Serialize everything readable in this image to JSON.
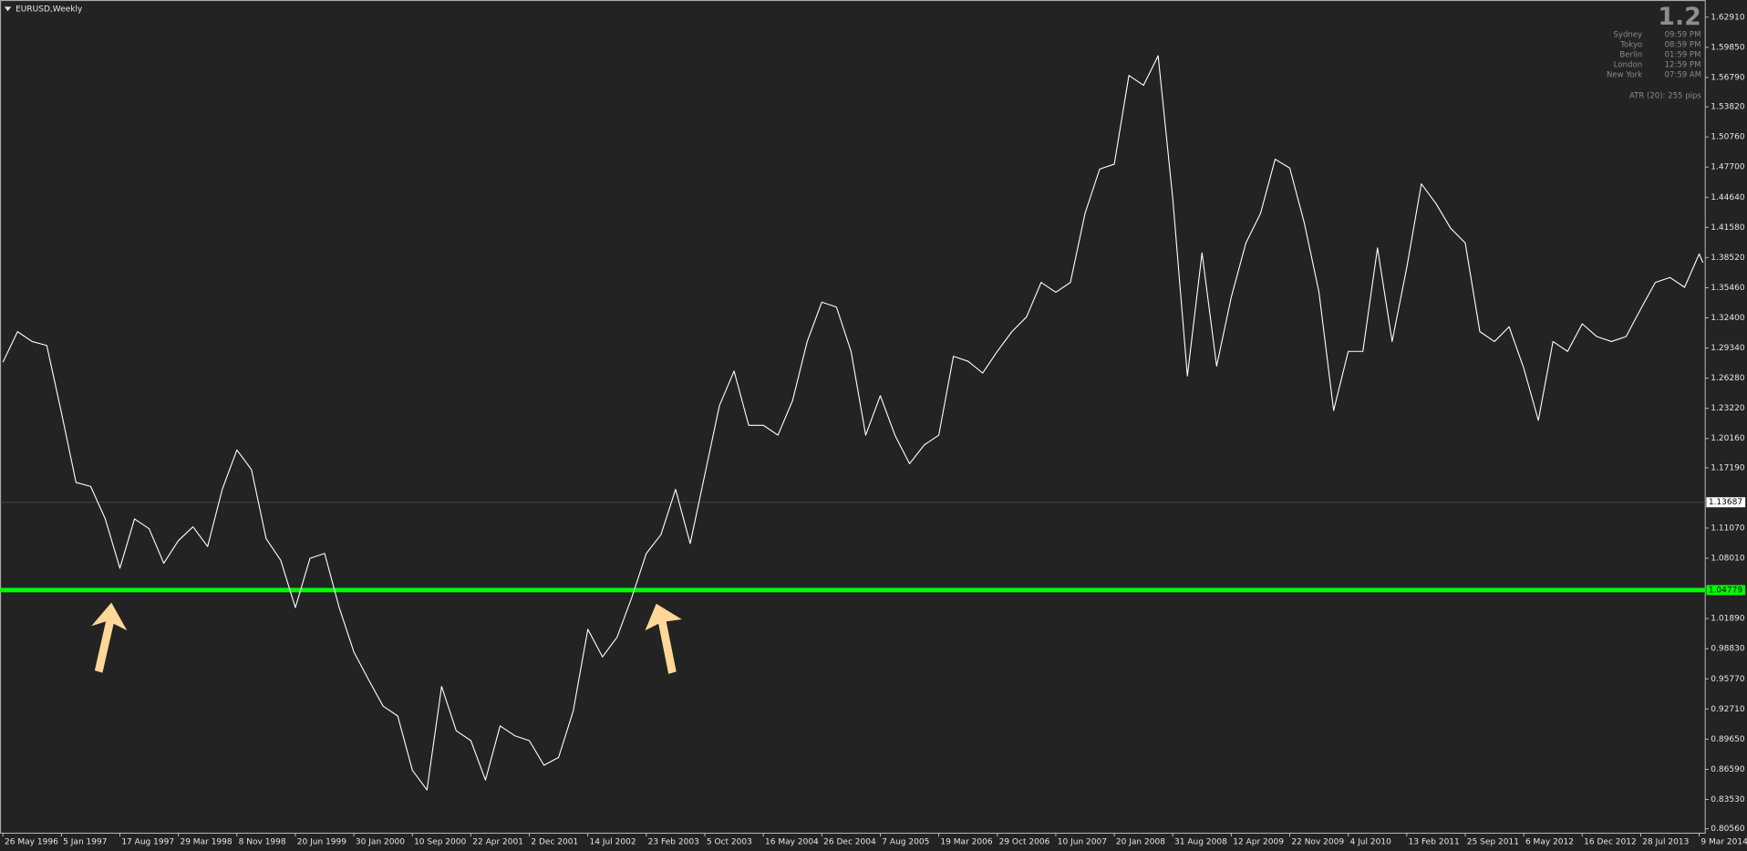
{
  "chart_data": {
    "type": "line",
    "title": "EURUSD,Weekly",
    "corner_value": "1.2",
    "clocks": [
      {
        "city": "Sydney",
        "time": "09:59 PM"
      },
      {
        "city": "Tokyo",
        "time": "08:59 PM"
      },
      {
        "city": "Berlin",
        "time": "01:59 PM"
      },
      {
        "city": "London",
        "time": "12:59 PM"
      },
      {
        "city": "New York",
        "time": "07:59 AM"
      }
    ],
    "atr": "ATR (20): 255 pips",
    "color": "#ffffff",
    "x": [
      "26 May 1996",
      "21 Jul 1996",
      "15 Sep 1996",
      "10 Nov 1996",
      "5 Jan 1997",
      "2 Mar 1997",
      "27 Apr 1997",
      "22 Jun 1997",
      "17 Aug 1997",
      "12 Oct 1997",
      "7 Dec 1997",
      "1 Feb 1998",
      "29 Mar 1998",
      "24 May 1998",
      "19 Jul 1998",
      "13 Sep 1998",
      "8 Nov 1998",
      "3 Jan 1999",
      "28 Feb 1999",
      "25 Apr 1999",
      "20 Jun 1999",
      "15 Aug 1999",
      "10 Oct 1999",
      "5 Dec 1999",
      "30 Jan 2000",
      "26 Mar 2000",
      "21 May 2000",
      "16 Jul 2000",
      "10 Sep 2000",
      "5 Nov 2000",
      "31 Dec 2000",
      "25 Feb 2001",
      "22 Apr 2001",
      "17 Jun 2001",
      "12 Aug 2001",
      "7 Oct 2001",
      "2 Dec 2001",
      "27 Jan 2002",
      "24 Mar 2002",
      "19 May 2002",
      "14 Jul 2002",
      "8 Sep 2002",
      "3 Nov 2002",
      "29 Dec 2002",
      "23 Feb 2003",
      "20 Apr 2003",
      "15 Jun 2003",
      "10 Aug 2003",
      "5 Oct 2003",
      "30 Nov 2003",
      "25 Jan 2004",
      "21 Mar 2004",
      "16 May 2004",
      "11 Jul 2004",
      "5 Sep 2004",
      "31 Oct 2004",
      "26 Dec 2004",
      "20 Feb 2005",
      "17 Apr 2005",
      "12 Jun 2005",
      "7 Aug 2005",
      "2 Oct 2005",
      "27 Nov 2005",
      "22 Jan 2006",
      "19 Mar 2006",
      "14 May 2006",
      "9 Jul 2006",
      "3 Sep 2006",
      "29 Oct 2006",
      "24 Dec 2006",
      "18 Feb 2007",
      "15 Apr 2007",
      "10 Jun 2007",
      "5 Aug 2007",
      "30 Sep 2007",
      "25 Nov 2007",
      "20 Jan 2008",
      "16 Mar 2008",
      "11 May 2008",
      "6 Jul 2008",
      "31 Aug 2008",
      "26 Oct 2008",
      "21 Dec 2008",
      "15 Feb 2009",
      "12 Apr 2009",
      "7 Jun 2009",
      "2 Aug 2009",
      "27 Sep 2009",
      "22 Nov 2009",
      "17 Jan 2010",
      "14 Mar 2010",
      "9 May 2010",
      "4 Jul 2010",
      "29 Aug 2010",
      "24 Oct 2010",
      "19 Dec 2010",
      "13 Feb 2011",
      "10 Apr 2011",
      "5 Jun 2011",
      "31 Jul 2011",
      "25 Sep 2011",
      "20 Nov 2011",
      "15 Jan 2012",
      "11 Mar 2012",
      "6 May 2012",
      "1 Jul 2012",
      "26 Aug 2012",
      "21 Oct 2012",
      "16 Dec 2012",
      "10 Feb 2013",
      "7 Apr 2013",
      "2 Jun 2013",
      "28 Jul 2013",
      "22 Sep 2013",
      "17 Nov 2013",
      "12 Jan 2014",
      "9 Mar 2014",
      "23 Mar 2014"
    ],
    "values": [
      1.279,
      1.31,
      1.3,
      1.296,
      1.228,
      1.157,
      1.153,
      1.12,
      1.07,
      1.12,
      1.11,
      1.075,
      1.098,
      1.112,
      1.092,
      1.15,
      1.19,
      1.17,
      1.1,
      1.078,
      1.03,
      1.08,
      1.085,
      1.03,
      0.985,
      0.957,
      0.93,
      0.92,
      0.865,
      0.845,
      0.95,
      0.905,
      0.895,
      0.855,
      0.91,
      0.9,
      0.895,
      0.87,
      0.878,
      0.925,
      1.008,
      0.98,
      1.0,
      1.04,
      1.085,
      1.104,
      1.15,
      1.095,
      1.165,
      1.235,
      1.27,
      1.215,
      1.215,
      1.205,
      1.24,
      1.3,
      1.34,
      1.335,
      1.29,
      1.205,
      1.245,
      1.205,
      1.176,
      1.195,
      1.205,
      1.285,
      1.28,
      1.268,
      1.29,
      1.31,
      1.325,
      1.36,
      1.35,
      1.36,
      1.43,
      1.475,
      1.48,
      1.57,
      1.56,
      1.59,
      1.445,
      1.265,
      1.39,
      1.275,
      1.345,
      1.4,
      1.43,
      1.485,
      1.476,
      1.42,
      1.35,
      1.23,
      1.29,
      1.29,
      1.395,
      1.3,
      1.375,
      1.46,
      1.44,
      1.415,
      1.4,
      1.31,
      1.3,
      1.315,
      1.273,
      1.22,
      1.3,
      1.29,
      1.318,
      1.305,
      1.3,
      1.305,
      1.333,
      1.36,
      1.365,
      1.355,
      1.389,
      1.38
    ],
    "xlim": [
      "17 May 1996",
      "1 Apr 2014"
    ],
    "xticks": [
      "26 May 1996",
      "5 Jan 1997",
      "17 Aug 1997",
      "29 Mar 1998",
      "8 Nov 1998",
      "20 Jun 1999",
      "30 Jan 2000",
      "10 Sep 2000",
      "22 Apr 2001",
      "2 Dec 2001",
      "14 Jul 2002",
      "23 Feb 2003",
      "5 Oct 2003",
      "16 May 2004",
      "26 Dec 2004",
      "7 Aug 2005",
      "19 Mar 2006",
      "29 Oct 2006",
      "10 Jun 2007",
      "20 Jan 2008",
      "31 Aug 2008",
      "12 Apr 2009",
      "22 Nov 2009",
      "4 Jul 2010",
      "13 Feb 2011",
      "25 Sep 2011",
      "6 May 2012",
      "16 Dec 2012",
      "28 Jul 2013",
      "9 Mar 2014"
    ],
    "ylim": [
      0.8011,
      1.646
    ],
    "yticks": [
      {
        "value": 1.6291,
        "label": "1.62910"
      },
      {
        "value": 1.5985,
        "label": "1.59850"
      },
      {
        "value": 1.5679,
        "label": "1.56790"
      },
      {
        "value": 1.5382,
        "label": "1.53820"
      },
      {
        "value": 1.5076,
        "label": "1.50760"
      },
      {
        "value": 1.477,
        "label": "1.47700"
      },
      {
        "value": 1.4464,
        "label": "1.44640"
      },
      {
        "value": 1.4158,
        "label": "1.41580"
      },
      {
        "value": 1.3852,
        "label": "1.38520"
      },
      {
        "value": 1.3546,
        "label": "1.35460"
      },
      {
        "value": 1.324,
        "label": "1.32400"
      },
      {
        "value": 1.2934,
        "label": "1.29340"
      },
      {
        "value": 1.2628,
        "label": "1.26280"
      },
      {
        "value": 1.2322,
        "label": "1.23220"
      },
      {
        "value": 1.2016,
        "label": "1.20160"
      },
      {
        "value": 1.1719,
        "label": "1.17190"
      },
      {
        "value": 1.1107,
        "label": "1.11070"
      },
      {
        "value": 1.0801,
        "label": "1.08010"
      },
      {
        "value": 1.0189,
        "label": "1.01890"
      },
      {
        "value": 0.9883,
        "label": "0.98830"
      },
      {
        "value": 0.9577,
        "label": "0.95770"
      },
      {
        "value": 0.9271,
        "label": "0.92710"
      },
      {
        "value": 0.8965,
        "label": "0.89650"
      },
      {
        "value": 0.8659,
        "label": "0.86590"
      },
      {
        "value": 0.8353,
        "label": "0.83530"
      },
      {
        "value": 0.8056,
        "label": "0.80560"
      }
    ],
    "hlines": [
      {
        "value": 1.13687,
        "label": "1.13687",
        "color": "#4a4a4a",
        "label_fill": "#ffffff"
      },
      {
        "value": 1.04779,
        "label": "1.04779",
        "color": "#00ff00",
        "label_fill": "#00ff00"
      }
    ],
    "grid": false
  }
}
